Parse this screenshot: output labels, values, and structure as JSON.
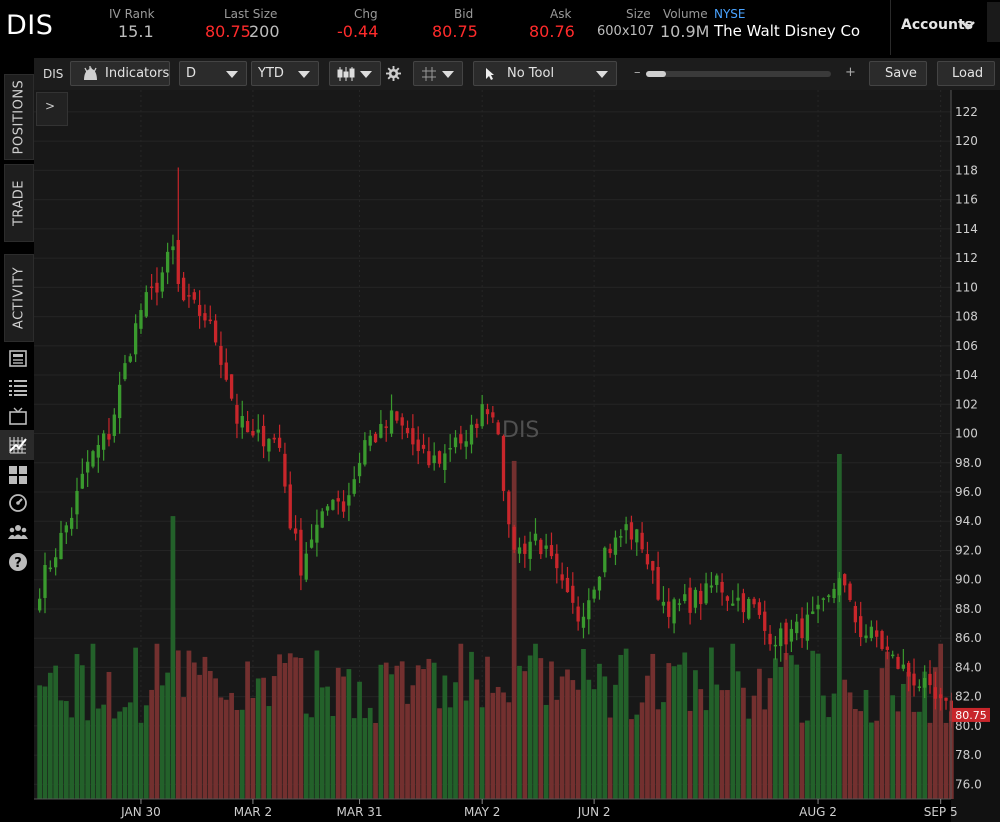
{
  "quote": {
    "symbol": "DIS",
    "iv_rank_label": "IV Rank",
    "iv_rank": "15.1",
    "last_size_label": "Last Size",
    "last": "80.75",
    "last_size": "200",
    "chg_label": "Chg",
    "chg": "-0.44",
    "bid_label": "Bid",
    "bid": "80.75",
    "ask_label": "Ask",
    "ask": "80.76",
    "size_label": "Size",
    "size": "600x107",
    "volume_label": "Volume",
    "volume": "10.9M",
    "exchange": "NYSE",
    "company": "The Walt Disney Co",
    "accounts_label": "Accounts"
  },
  "sidebar": {
    "tabs": [
      "POSITIONS",
      "TRADE",
      "ACTIVITY"
    ]
  },
  "toolbar": {
    "symbol": "DIS",
    "indicators_label": "Indicators",
    "aggregation": "D",
    "range": "YTD",
    "tool": "No Tool",
    "zoom_minus": "–",
    "zoom_plus": "+",
    "save_label": "Save",
    "load_label": "Load",
    "expand_label": ">"
  },
  "colors": {
    "up": "#3a9a2e",
    "down": "#c8262b",
    "vol_up": "#23612a",
    "vol_down": "#73302f",
    "price_badge": "#c8262b"
  },
  "chart_data": {
    "type": "candlestick",
    "watermark": "DIS",
    "last_price_badge": "80.75",
    "y_ticks": [
      "122",
      "120",
      "118",
      "116",
      "114",
      "112",
      "110",
      "108",
      "106",
      "104",
      "102",
      "100",
      "98.0",
      "96.0",
      "94.0",
      "92.0",
      "90.0",
      "88.0",
      "86.0",
      "84.0",
      "82.0",
      "80.0",
      "78.0",
      "76.0"
    ],
    "ylim": [
      75,
      123.5
    ],
    "x_labels": [
      {
        "label": "JAN 30",
        "index": 19
      },
      {
        "label": "MAR 2",
        "index": 40
      },
      {
        "label": "MAR 31",
        "index": 60
      },
      {
        "label": "MAY 2",
        "index": 83
      },
      {
        "label": "JUN 2",
        "index": 104
      },
      {
        "label": "AUG 2",
        "index": 146
      },
      {
        "label": "SEP 5",
        "index": 169
      }
    ],
    "num_bars": 172,
    "waypoints": [
      [
        0,
        89.5
      ],
      [
        3,
        92
      ],
      [
        6,
        94.5
      ],
      [
        9,
        98
      ],
      [
        13,
        100
      ],
      [
        15,
        103
      ],
      [
        17,
        106
      ],
      [
        19,
        108.5
      ],
      [
        21,
        109.5
      ],
      [
        23,
        111
      ],
      [
        25,
        112.5
      ],
      [
        26,
        110
      ],
      [
        27,
        109
      ],
      [
        29,
        108.5
      ],
      [
        31,
        108
      ],
      [
        33,
        106.5
      ],
      [
        35,
        104
      ],
      [
        37,
        101
      ],
      [
        40,
        99.5
      ],
      [
        43,
        100
      ],
      [
        45,
        99
      ],
      [
        47,
        94
      ],
      [
        49,
        91
      ],
      [
        51,
        93
      ],
      [
        53,
        94
      ],
      [
        55,
        96
      ],
      [
        57,
        95
      ],
      [
        59,
        97
      ],
      [
        61,
        99.5
      ],
      [
        64,
        100
      ],
      [
        66,
        101
      ],
      [
        69,
        100
      ],
      [
        71,
        98.5
      ],
      [
        73,
        98
      ],
      [
        76,
        98.5
      ],
      [
        78,
        100
      ],
      [
        80,
        99
      ],
      [
        82,
        101
      ],
      [
        84,
        102
      ],
      [
        86,
        100.5
      ],
      [
        88,
        93
      ],
      [
        90,
        92
      ],
      [
        93,
        93
      ],
      [
        96,
        91
      ],
      [
        99,
        88.5
      ],
      [
        101,
        87.5
      ],
      [
        103,
        89
      ],
      [
        106,
        92
      ],
      [
        108,
        92.5
      ],
      [
        110,
        93.5
      ],
      [
        113,
        92.5
      ],
      [
        115,
        90
      ],
      [
        117,
        88.5
      ],
      [
        119,
        88
      ],
      [
        122,
        88.5
      ],
      [
        125,
        89
      ],
      [
        127,
        90
      ],
      [
        129,
        89
      ],
      [
        132,
        88.5
      ],
      [
        134,
        88
      ],
      [
        136,
        86.5
      ],
      [
        139,
        86
      ],
      [
        142,
        86.5
      ],
      [
        144,
        87
      ],
      [
        146,
        87.5
      ],
      [
        148,
        88.5
      ],
      [
        150,
        90.5
      ],
      [
        152,
        88
      ],
      [
        154,
        86.5
      ],
      [
        157,
        86
      ],
      [
        160,
        84.5
      ],
      [
        163,
        83.5
      ],
      [
        165,
        83
      ],
      [
        167,
        82
      ],
      [
        169,
        81.3
      ],
      [
        171,
        80.8
      ]
    ],
    "volume_spikes": [
      [
        25,
        0.82
      ],
      [
        89,
        0.98
      ],
      [
        150,
        1.0
      ]
    ]
  }
}
